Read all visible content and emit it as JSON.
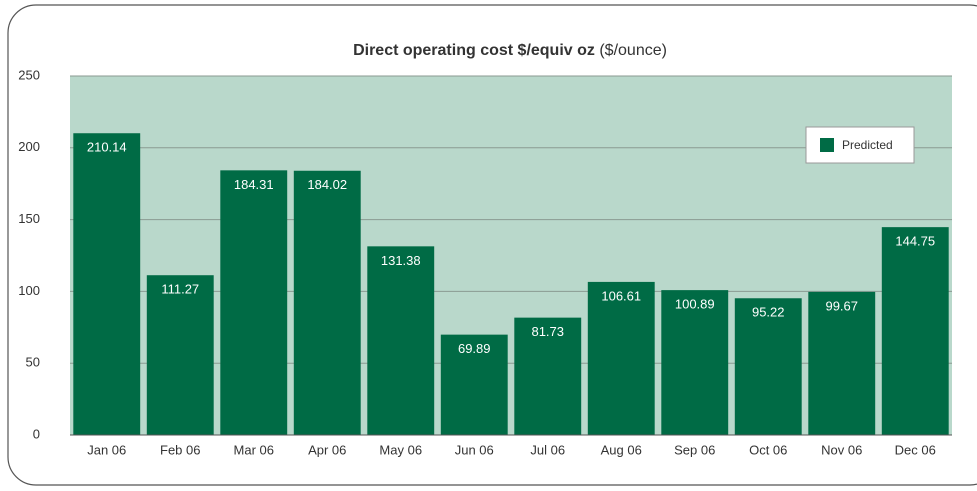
{
  "chart_data": {
    "type": "bar",
    "title": "Direct operating cost $/equiv oz",
    "subtitle": "($/ounce)",
    "categories": [
      "Jan 06",
      "Feb 06",
      "Mar 06",
      "Apr 06",
      "May 06",
      "Jun 06",
      "Jul 06",
      "Aug 06",
      "Sep 06",
      "Oct 06",
      "Nov 06",
      "Dec 06"
    ],
    "series": [
      {
        "name": "Predicted",
        "color": "#006b45",
        "values": [
          210.14,
          111.27,
          184.31,
          184.02,
          131.38,
          69.89,
          81.73,
          106.61,
          100.89,
          95.22,
          99.67,
          144.75
        ]
      }
    ],
    "ylim": [
      0,
      250
    ],
    "yticks": [
      0,
      50,
      100,
      150,
      200,
      250
    ],
    "grid": true,
    "legend": "upper right"
  }
}
